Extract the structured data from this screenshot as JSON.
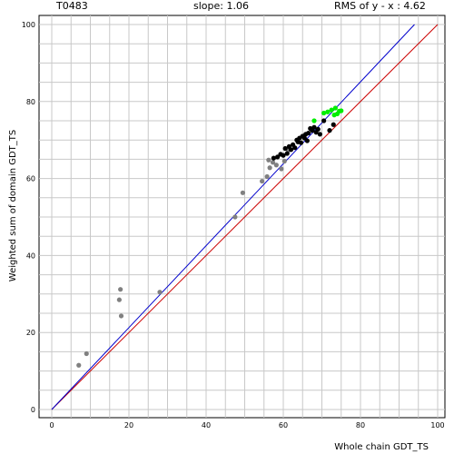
{
  "header": {
    "target": "T0483",
    "slope": "slope: 1.06",
    "rms": "RMS of  y - x : 4.62"
  },
  "chart_data": {
    "type": "scatter",
    "title": "",
    "xlabel": "Whole chain GDT_TS",
    "ylabel": "Weighted sum of domain GDT_TS",
    "xlim": [
      0,
      100
    ],
    "ylim": [
      0,
      100
    ],
    "xticks": [
      0,
      20,
      40,
      60,
      80,
      100
    ],
    "yticks": [
      0,
      20,
      40,
      60,
      80,
      100
    ],
    "grid": true,
    "lines": [
      {
        "name": "y = x",
        "color": "#cc0000",
        "points": [
          [
            0,
            0
          ],
          [
            100,
            100
          ]
        ]
      },
      {
        "name": "fit",
        "color": "#0000cc",
        "points": [
          [
            0,
            0
          ],
          [
            94,
            100
          ]
        ]
      }
    ],
    "series": [
      {
        "color": "#808080",
        "points": [
          [
            7,
            11.5
          ],
          [
            9,
            14.5
          ],
          [
            17.5,
            28.5
          ],
          [
            17.8,
            31.2
          ],
          [
            18,
            24.3
          ],
          [
            28,
            30.5
          ],
          [
            47.5,
            50
          ],
          [
            49.5,
            56.3
          ],
          [
            54.5,
            59.3
          ],
          [
            55.8,
            60.5
          ],
          [
            56.5,
            62.8
          ],
          [
            56.2,
            64.8
          ],
          [
            57.3,
            64.2
          ],
          [
            58.2,
            63.5
          ],
          [
            59.5,
            62.5
          ],
          [
            60.3,
            64.5
          ],
          [
            61.3,
            67.3
          ]
        ]
      },
      {
        "color": "#000000",
        "points": [
          [
            57.5,
            65.3
          ],
          [
            58.5,
            65.6
          ],
          [
            59.3,
            66.3
          ],
          [
            60,
            66
          ],
          [
            60.5,
            67.8
          ],
          [
            61,
            66.5
          ],
          [
            61.5,
            68.3
          ],
          [
            62,
            67.5
          ],
          [
            62.5,
            68.8
          ],
          [
            63,
            68
          ],
          [
            63.5,
            70
          ],
          [
            63.8,
            69.5
          ],
          [
            64.2,
            70.5
          ],
          [
            64.6,
            69.3
          ],
          [
            65,
            71
          ],
          [
            65.5,
            70.5
          ],
          [
            65.8,
            71.5
          ],
          [
            66.2,
            69.8
          ],
          [
            66.5,
            71.8
          ],
          [
            67,
            73
          ],
          [
            67.5,
            72.5
          ],
          [
            68,
            73.3
          ],
          [
            68.5,
            72
          ],
          [
            69,
            72.8
          ],
          [
            69.5,
            71.5
          ],
          [
            70.5,
            75
          ],
          [
            72,
            72.5
          ],
          [
            73,
            74
          ]
        ]
      },
      {
        "color": "#00ee00",
        "points": [
          [
            68,
            75
          ],
          [
            70.5,
            77
          ],
          [
            71.5,
            77.3
          ],
          [
            72.5,
            77.8
          ],
          [
            73.2,
            76.5
          ],
          [
            73.5,
            78.3
          ],
          [
            74,
            76.8
          ],
          [
            74.5,
            77.5
          ],
          [
            75,
            77.6
          ]
        ]
      }
    ]
  }
}
